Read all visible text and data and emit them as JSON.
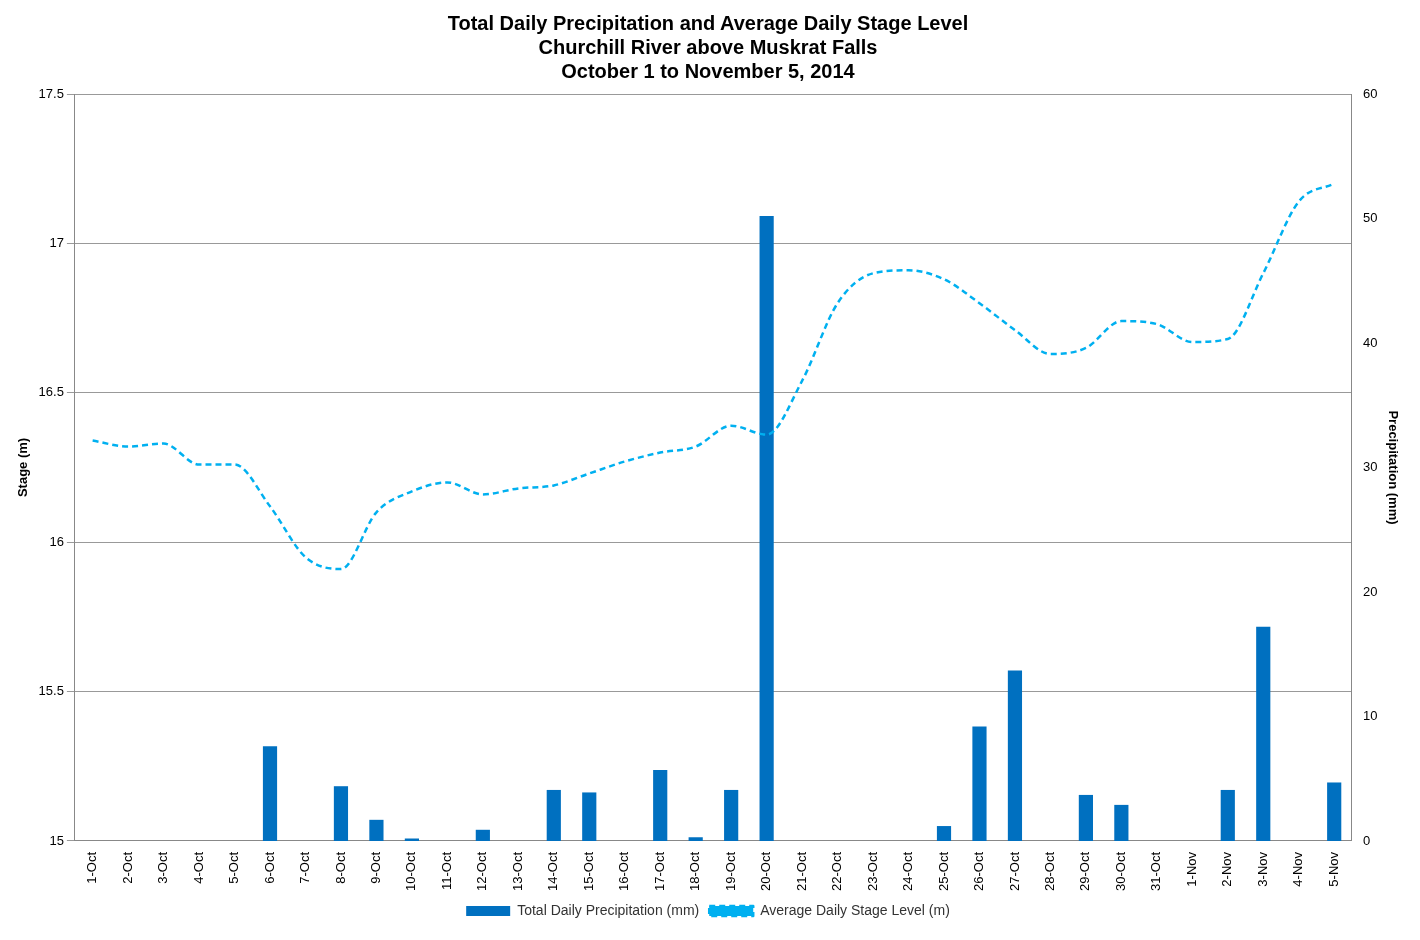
{
  "chart_data": {
    "type": "bar",
    "title": "Total Daily Precipitation and Average Daily Stage Level\nChurchill River above Muskrat Falls\nOctober 1 to November 5, 2014",
    "ylabel": "Stage (m)",
    "y2label": "Precipitation (mm)",
    "categories": [
      "1-Oct",
      "2-Oct",
      "3-Oct",
      "4-Oct",
      "5-Oct",
      "6-Oct",
      "7-Oct",
      "8-Oct",
      "9-Oct",
      "10-Oct",
      "11-Oct",
      "12-Oct",
      "13-Oct",
      "14-Oct",
      "15-Oct",
      "16-Oct",
      "17-Oct",
      "18-Oct",
      "19-Oct",
      "20-Oct",
      "21-Oct",
      "22-Oct",
      "23-Oct",
      "24-Oct",
      "25-Oct",
      "26-Oct",
      "27-Oct",
      "28-Oct",
      "29-Oct",
      "30-Oct",
      "31-Oct",
      "1-Nov",
      "2-Nov",
      "3-Nov",
      "4-Nov",
      "5-Nov"
    ],
    "series": [
      {
        "name": "Total Daily Precipitation (mm)",
        "axis": "y2",
        "color": "#0070c0",
        "values": [
          0,
          0,
          0,
          0,
          0,
          7.6,
          0,
          4.4,
          1.7,
          0.2,
          0,
          0.9,
          0,
          4.1,
          3.9,
          0,
          5.7,
          0.3,
          4.1,
          50.2,
          0,
          0,
          0,
          0,
          1.2,
          9.2,
          13.7,
          0,
          3.7,
          2.9,
          0,
          0,
          4.1,
          17.2,
          0,
          4.7
        ]
      },
      {
        "name": "Average Daily Stage Level (m)",
        "type": "line",
        "line_style": "dashed",
        "color": "#00b0f0",
        "values": [
          16.34,
          16.32,
          16.33,
          16.26,
          16.26,
          16.12,
          15.95,
          15.91,
          16.1,
          16.17,
          16.2,
          16.16,
          16.18,
          16.19,
          16.23,
          16.27,
          16.3,
          16.32,
          16.39,
          16.36,
          16.54,
          16.8,
          16.9,
          16.91,
          16.88,
          16.8,
          16.71,
          16.63,
          16.65,
          16.74,
          16.73,
          16.67,
          16.68,
          16.9,
          17.14,
          17.2
        ]
      }
    ],
    "ylim": [
      15,
      17.5
    ],
    "yticks": [
      15,
      15.5,
      16,
      16.5,
      17,
      17.5
    ],
    "y2lim": [
      0,
      60
    ],
    "y2ticks": [
      0,
      10,
      20,
      30,
      40,
      50,
      60
    ],
    "grid": "y",
    "legend": "bottom"
  }
}
